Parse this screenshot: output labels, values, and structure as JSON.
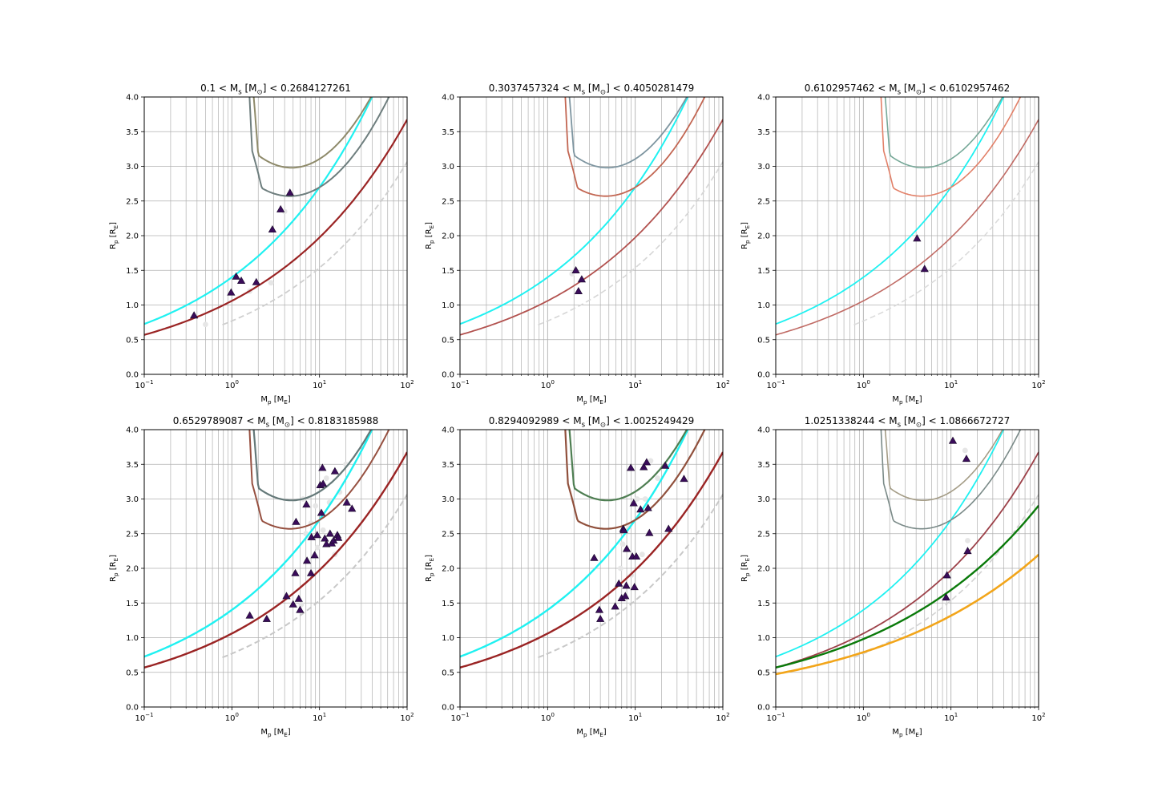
{
  "figure": {
    "background": "#ffffff"
  },
  "chart_data": [
    {
      "type": "scatter",
      "title": "0.1 < M$_s$ [M$_\\odot$] < 0.2684127261",
      "xlabel": "M$_p$ [M$_E$]",
      "ylabel": "R$_p$ [R$_E$]",
      "xscale": "log",
      "xlim": [
        0.1,
        100
      ],
      "ylim": [
        0.0,
        4.0
      ],
      "grid": true,
      "planets": [
        [
          0.37,
          0.85
        ],
        [
          0.98,
          1.18
        ],
        [
          1.12,
          1.41
        ],
        [
          1.28,
          1.35
        ],
        [
          1.9,
          1.33
        ],
        [
          2.9,
          2.09
        ],
        [
          3.6,
          2.38
        ],
        [
          4.6,
          2.62
        ]
      ],
      "ghost_points": [
        [
          0.5,
          0.72
        ],
        [
          1.6,
          1.2
        ],
        [
          2.8,
          1.32
        ],
        [
          4.0,
          2.35
        ]
      ],
      "models": [
        {
          "kind": "cyan",
          "color": "#1ff1f1",
          "width": 2.2
        },
        {
          "kind": "rock",
          "color": "#9a2424",
          "width": 2.2
        },
        {
          "kind": "envA",
          "color": "#6e7e7e",
          "width": 2.0
        },
        {
          "kind": "envB",
          "color": "#8e8a6a",
          "width": 2.0
        },
        {
          "kind": "iron",
          "color": "#cfcfcf",
          "width": 1.8
        }
      ]
    },
    {
      "type": "scatter",
      "title": "0.3037457324 < M$_s$ [M$_\\odot$] < 0.4050281479",
      "xlabel": "M$_p$ [M$_E$]",
      "ylabel": "R$_p$ [R$_E$]",
      "xscale": "log",
      "xlim": [
        0.1,
        100
      ],
      "ylim": [
        0.0,
        4.0
      ],
      "grid": true,
      "planets": [
        [
          2.1,
          1.5
        ],
        [
          2.25,
          1.2
        ],
        [
          2.45,
          1.37
        ]
      ],
      "ghost_points": [
        [
          1.9,
          1.45
        ]
      ],
      "models": [
        {
          "kind": "cyan",
          "color": "#1ff1f1",
          "width": 2.0
        },
        {
          "kind": "rock",
          "color": "#b2514e",
          "width": 1.8
        },
        {
          "kind": "envA",
          "color": "#c26652",
          "width": 1.8
        },
        {
          "kind": "envB",
          "color": "#7e95a0",
          "width": 1.8
        },
        {
          "kind": "iron",
          "color": "#d6d6d6",
          "width": 1.6
        }
      ]
    },
    {
      "type": "scatter",
      "title": "0.6102957462 < M$_s$ [M$_\\odot$] < 0.6102957462",
      "xlabel": "M$_p$ [M$_E$]",
      "ylabel": "R$_p$ [R$_E$]",
      "xscale": "log",
      "xlim": [
        0.1,
        100
      ],
      "ylim": [
        0.0,
        4.0
      ],
      "grid": true,
      "planets": [
        [
          4.1,
          1.96
        ],
        [
          5.0,
          1.52
        ]
      ],
      "ghost_points": [],
      "models": [
        {
          "kind": "cyan",
          "color": "#1ff1f1",
          "width": 1.8
        },
        {
          "kind": "rock",
          "color": "#c06a64",
          "width": 1.6
        },
        {
          "kind": "envA",
          "color": "#e28068",
          "width": 1.6
        },
        {
          "kind": "envB",
          "color": "#76a898",
          "width": 1.6
        },
        {
          "kind": "iron",
          "color": "#dadada",
          "width": 1.5
        }
      ]
    },
    {
      "type": "scatter",
      "title": "0.6529789087 < M$_s$ [M$_\\odot$] < 0.8183185988",
      "xlabel": "M$_p$ [M$_E$]",
      "ylabel": "R$_p$ [R$_E$]",
      "xscale": "log",
      "xlim": [
        0.1,
        100
      ],
      "ylim": [
        0.0,
        4.0
      ],
      "grid": true,
      "planets": [
        [
          1.6,
          1.32
        ],
        [
          2.5,
          1.27
        ],
        [
          4.2,
          1.6
        ],
        [
          5.0,
          1.48
        ],
        [
          5.3,
          1.93
        ],
        [
          5.4,
          2.67
        ],
        [
          5.8,
          1.56
        ],
        [
          6.0,
          1.4
        ],
        [
          7.1,
          2.92
        ],
        [
          7.2,
          2.11
        ],
        [
          8.0,
          1.93
        ],
        [
          8.1,
          2.45
        ],
        [
          8.8,
          2.19
        ],
        [
          9.4,
          2.48
        ],
        [
          10.2,
          3.2
        ],
        [
          10.5,
          2.8
        ],
        [
          10.8,
          3.45
        ],
        [
          11.0,
          3.22
        ],
        [
          11.5,
          2.43
        ],
        [
          12.0,
          2.35
        ],
        [
          13.2,
          2.5
        ],
        [
          13.8,
          2.36
        ],
        [
          14.5,
          2.4
        ],
        [
          15.0,
          3.4
        ],
        [
          16.0,
          2.48
        ],
        [
          16.4,
          2.44
        ],
        [
          20.5,
          2.95
        ],
        [
          23.5,
          2.86
        ]
      ],
      "ghost_points": [
        [
          6.2,
          1.48
        ],
        [
          7.0,
          2.5
        ],
        [
          9.0,
          2.9
        ],
        [
          12.0,
          3.3
        ],
        [
          15.0,
          2.2
        ],
        [
          17.0,
          3.1
        ],
        [
          20.0,
          3.5
        ],
        [
          13.0,
          2.95
        ],
        [
          11.0,
          2.55
        ],
        [
          6.5,
          3.0
        ],
        [
          9.5,
          2.3
        ],
        [
          8.0,
          2.65
        ]
      ],
      "models": [
        {
          "kind": "cyan",
          "color": "#1ff1f1",
          "width": 2.4
        },
        {
          "kind": "rock",
          "color": "#9a2424",
          "width": 2.4
        },
        {
          "kind": "envA",
          "color": "#965040",
          "width": 2.0
        },
        {
          "kind": "envB",
          "color": "#647878",
          "width": 2.2
        },
        {
          "kind": "iron",
          "color": "#c8c8c8",
          "width": 2.0
        }
      ]
    },
    {
      "type": "scatter",
      "title": "0.8294092989 < M$_s$ [M$_\\odot$] < 1.0025249429",
      "xlabel": "M$_p$ [M$_E$]",
      "ylabel": "R$_p$ [R$_E$]",
      "xscale": "log",
      "xlim": [
        0.1,
        100
      ],
      "ylim": [
        0.0,
        4.0
      ],
      "grid": true,
      "planets": [
        [
          3.4,
          2.15
        ],
        [
          3.9,
          1.4
        ],
        [
          4.0,
          1.27
        ],
        [
          5.9,
          1.45
        ],
        [
          6.5,
          1.78
        ],
        [
          7.0,
          1.57
        ],
        [
          7.3,
          2.57
        ],
        [
          7.4,
          2.55
        ],
        [
          7.7,
          1.6
        ],
        [
          7.9,
          1.75
        ],
        [
          8.0,
          2.28
        ],
        [
          8.9,
          3.45
        ],
        [
          9.3,
          2.17
        ],
        [
          9.6,
          2.94
        ],
        [
          9.8,
          1.73
        ],
        [
          10.3,
          2.17
        ],
        [
          11.5,
          2.85
        ],
        [
          12.5,
          3.46
        ],
        [
          13.5,
          3.53
        ],
        [
          14.0,
          2.87
        ],
        [
          14.5,
          2.51
        ],
        [
          22.0,
          3.48
        ],
        [
          24.0,
          2.57
        ],
        [
          36.0,
          3.29
        ]
      ],
      "ghost_points": [
        [
          7.2,
          2.35
        ],
        [
          8.5,
          2.6
        ],
        [
          10.5,
          3.0
        ],
        [
          12.0,
          2.2
        ],
        [
          13.0,
          3.0
        ],
        [
          15.0,
          3.55
        ],
        [
          9.0,
          1.9
        ],
        [
          6.8,
          2.0
        ],
        [
          18.0,
          3.3
        ]
      ],
      "models": [
        {
          "kind": "cyan",
          "color": "#1ff1f1",
          "width": 2.4
        },
        {
          "kind": "rock",
          "color": "#9a2424",
          "width": 2.4
        },
        {
          "kind": "envA",
          "color": "#90503c",
          "width": 2.2
        },
        {
          "kind": "envB",
          "color": "#4e7e52",
          "width": 2.2
        },
        {
          "kind": "iron",
          "color": "#c8c8c8",
          "width": 2.0
        }
      ]
    },
    {
      "type": "scatter",
      "title": "1.0251338244 < M$_s$ [M$_\\odot$] < 1.0866672727",
      "xlabel": "M$_p$ [M$_E$]",
      "ylabel": "R$_p$ [R$_E$]",
      "xscale": "log",
      "xlim": [
        0.1,
        100
      ],
      "ylim": [
        0.0,
        4.0
      ],
      "grid": true,
      "planets": [
        [
          8.8,
          1.58
        ],
        [
          9.0,
          1.9
        ],
        [
          10.5,
          3.84
        ],
        [
          15.0,
          3.58
        ],
        [
          15.5,
          2.25
        ]
      ],
      "ghost_points": [
        [
          14.5,
          3.7
        ],
        [
          15.5,
          2.4
        ]
      ],
      "models": [
        {
          "kind": "cyan",
          "color": "#1ff1f1",
          "width": 1.8
        },
        {
          "kind": "rock",
          "color": "#9c4048",
          "width": 1.8
        },
        {
          "kind": "envA",
          "color": "#7a8a88",
          "width": 1.6
        },
        {
          "kind": "envB",
          "color": "#a49c86",
          "width": 1.6
        },
        {
          "kind": "iron",
          "color": "#d2d2d2",
          "width": 1.6
        },
        {
          "kind": "green",
          "color": "#0a7a0a",
          "width": 2.4
        },
        {
          "kind": "orange",
          "color": "#f2a51a",
          "width": 2.6
        }
      ]
    }
  ]
}
